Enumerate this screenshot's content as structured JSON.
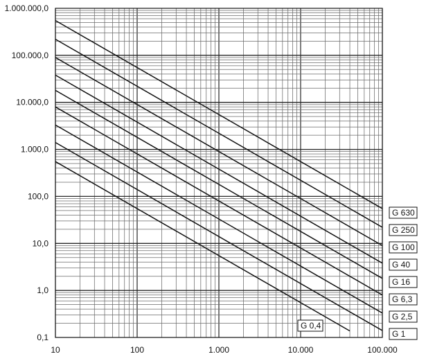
{
  "chart_data": {
    "type": "line",
    "title": "",
    "xlabel": "",
    "ylabel": "",
    "xscale": "log",
    "yscale": "log",
    "xlim": [
      10,
      100000
    ],
    "ylim": [
      0.1,
      1000000
    ],
    "grid": true,
    "x_ticks": [
      {
        "value": 10,
        "label": "10"
      },
      {
        "value": 100,
        "label": "100"
      },
      {
        "value": 1000,
        "label": "1.000"
      },
      {
        "value": 10000,
        "label": "10.000"
      },
      {
        "value": 100000,
        "label": "100.000"
      }
    ],
    "y_ticks": [
      {
        "value": 1000000,
        "label": "1.000.000,0"
      },
      {
        "value": 100000,
        "label": "100.000,0"
      },
      {
        "value": 10000,
        "label": "10.000,0"
      },
      {
        "value": 1000,
        "label": "1.000,0"
      },
      {
        "value": 100,
        "label": "100,0"
      },
      {
        "value": 10,
        "label": "10,0"
      },
      {
        "value": 1,
        "label": "1,0"
      },
      {
        "value": 0.1,
        "label": "0,1"
      }
    ],
    "series": [
      {
        "name": "G 630",
        "x": [
          10,
          100000
        ],
        "y": [
          550000,
          55
        ]
      },
      {
        "name": "G 250",
        "x": [
          10,
          100000
        ],
        "y": [
          220000,
          22
        ]
      },
      {
        "name": "G 100",
        "x": [
          10,
          100000
        ],
        "y": [
          90000,
          9
        ]
      },
      {
        "name": "G 40",
        "x": [
          10,
          100000
        ],
        "y": [
          38000,
          3.8
        ]
      },
      {
        "name": "G 16",
        "x": [
          10,
          100000
        ],
        "y": [
          18000,
          1.8
        ]
      },
      {
        "name": "G 6,3",
        "x": [
          10,
          100000
        ],
        "y": [
          8000,
          0.8
        ]
      },
      {
        "name": "G 2,5",
        "x": [
          10,
          100000
        ],
        "y": [
          3300,
          0.33
        ]
      },
      {
        "name": "G 1",
        "x": [
          10,
          100000
        ],
        "y": [
          1400,
          0.14
        ]
      },
      {
        "name": "G 0,4",
        "x": [
          10,
          40000
        ],
        "y": [
          550,
          0.1375
        ]
      }
    ]
  }
}
